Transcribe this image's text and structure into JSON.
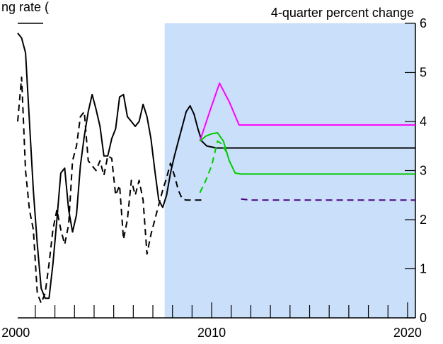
{
  "chart_data": {
    "type": "line",
    "title": "ng rate (",
    "subtitle": "4-quarter percent change",
    "xlabel": "",
    "ylabel": "",
    "xlim": [
      2000.1,
      2020.4
    ],
    "ylim": [
      0,
      6
    ],
    "x_ticks": [
      {
        "value": 2000,
        "label": "2000"
      },
      {
        "value": 2010,
        "label": "2010"
      },
      {
        "value": 2020,
        "label": "2020"
      }
    ],
    "y_ticks": [
      {
        "value": 0,
        "label": "0"
      },
      {
        "value": 1,
        "label": "1"
      },
      {
        "value": 2,
        "label": "2"
      },
      {
        "value": 3,
        "label": "3"
      },
      {
        "value": 4,
        "label": "4"
      },
      {
        "value": 5,
        "label": "5"
      },
      {
        "value": 6,
        "label": "6"
      }
    ],
    "y_axis_side": "right",
    "shaded_region": {
      "x_start": 2007.6,
      "x_end": 2020.4,
      "color": "#c9dffa"
    },
    "grid": false,
    "series": [
      {
        "style": "solid",
        "color": "#000000",
        "x": [
          2000.1,
          2000.3,
          2000.5,
          2000.7,
          2000.9,
          2001.1,
          2001.3,
          2001.5,
          2001.7,
          2001.9,
          2002.1,
          2002.3,
          2002.5,
          2002.7,
          2002.9,
          2003.1,
          2003.3,
          2003.5,
          2003.7,
          2003.9,
          2004.1,
          2004.3,
          2004.5,
          2004.7,
          2004.9,
          2005.1,
          2005.3,
          2005.5,
          2005.7,
          2005.9,
          2006.1,
          2006.3,
          2006.5,
          2006.7,
          2006.9,
          2007.1,
          2007.3,
          2007.5,
          2007.7,
          2007.9,
          2008.1,
          2008.3,
          2008.5,
          2008.7,
          2008.9,
          2009.1,
          2009.3,
          2009.5,
          2009.75,
          2010.0,
          2010.25,
          2010.5,
          2010.75,
          2011.0,
          2011.25,
          2011.5,
          2020.4
        ],
        "y": [
          5.8,
          5.7,
          5.4,
          4.0,
          2.6,
          1.5,
          0.6,
          0.4,
          0.4,
          1.1,
          2.0,
          2.95,
          3.05,
          2.2,
          1.75,
          2.1,
          3.1,
          3.7,
          4.2,
          4.55,
          4.25,
          3.9,
          3.3,
          3.3,
          3.65,
          3.85,
          4.5,
          4.55,
          4.1,
          4.0,
          3.9,
          4.0,
          4.35,
          4.1,
          3.65,
          3.0,
          2.4,
          2.25,
          2.5,
          2.95,
          3.3,
          3.6,
          3.9,
          4.2,
          4.32,
          4.15,
          3.85,
          3.6,
          3.5,
          3.48,
          3.46,
          3.46,
          3.46,
          3.46,
          3.46,
          3.46,
          3.46
        ]
      },
      {
        "style": "dashed",
        "color": "#000000",
        "x": [
          2000.1,
          2000.3,
          2000.5,
          2000.7,
          2000.9,
          2001.1,
          2001.3,
          2001.5,
          2001.7,
          2001.9,
          2002.1,
          2002.3,
          2002.5,
          2002.7,
          2002.9,
          2003.1,
          2003.3,
          2003.5,
          2003.7,
          2003.9,
          2004.1,
          2004.3,
          2004.5,
          2004.7,
          2004.9,
          2005.1,
          2005.3,
          2005.5,
          2005.7,
          2005.9,
          2006.1,
          2006.3,
          2006.5,
          2006.7,
          2006.9,
          2007.1,
          2007.3,
          2007.5,
          2007.7,
          2007.9,
          2008.1,
          2008.3,
          2008.5,
          2008.7,
          2008.9,
          2009.1,
          2009.3,
          2009.5
        ],
        "y": [
          4.0,
          4.9,
          3.0,
          2.2,
          1.8,
          0.5,
          0.3,
          0.5,
          1.1,
          1.8,
          2.2,
          1.8,
          1.5,
          1.9,
          3.2,
          3.5,
          4.1,
          4.2,
          3.2,
          3.1,
          3.0,
          3.2,
          2.9,
          3.3,
          3.25,
          2.5,
          2.7,
          1.6,
          2.0,
          2.8,
          2.5,
          2.8,
          2.4,
          1.3,
          1.7,
          2.0,
          2.3,
          2.6,
          2.85,
          3.15,
          2.9,
          2.6,
          2.42,
          2.4,
          2.4,
          2.4,
          2.4,
          2.4
        ]
      },
      {
        "style": "solid",
        "color": "#ff00ff",
        "x": [
          2009.4,
          2009.9,
          2010.4,
          2010.9,
          2011.4,
          2020.4
        ],
        "y": [
          3.6,
          4.2,
          4.78,
          4.4,
          3.93,
          3.93
        ]
      },
      {
        "style": "solid",
        "color": "#00cc00",
        "x": [
          2009.4,
          2009.7,
          2010.0,
          2010.3,
          2010.6,
          2010.9,
          2011.2,
          2011.5,
          2020.4
        ],
        "y": [
          3.6,
          3.7,
          3.75,
          3.77,
          3.6,
          3.2,
          2.95,
          2.93,
          2.93
        ]
      },
      {
        "style": "dashed",
        "color": "#00cc00",
        "x": [
          2009.4,
          2009.7,
          2010.0,
          2010.3,
          2010.5,
          2010.8
        ],
        "y": [
          2.55,
          2.8,
          3.1,
          3.6,
          3.55,
          3.35
        ]
      },
      {
        "style": "dashed",
        "color": "#4b0082",
        "x": [
          2011.5,
          2012.0,
          2020.4
        ],
        "y": [
          2.42,
          2.4,
          2.4
        ]
      }
    ]
  }
}
